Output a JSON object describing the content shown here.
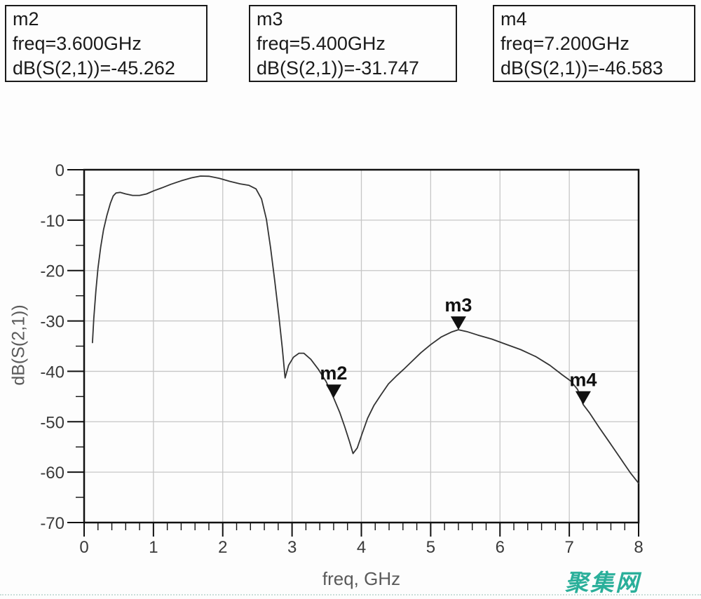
{
  "marker_boxes": [
    {
      "id": "m2",
      "freq": "freq=3.600GHz",
      "value": "dB(S(2,1))=-45.262"
    },
    {
      "id": "m3",
      "freq": "freq=5.400GHz",
      "value": "dB(S(2,1))=-31.747"
    },
    {
      "id": "m4",
      "freq": "freq=7.200GHz",
      "value": "dB(S(2,1))=-46.583"
    }
  ],
  "chart_data": {
    "type": "line",
    "title": "",
    "xlabel": "freq, GHz",
    "ylabel": "dB(S(2,1))",
    "xlim": [
      0,
      8
    ],
    "ylim": [
      -70,
      0
    ],
    "x_major_step": 1,
    "x_minor_step": 0.2,
    "y_major_step": 10,
    "y_minor_step": 5,
    "grid": true,
    "legend_position": "none",
    "x_tick_labels": [
      "0",
      "1",
      "2",
      "3",
      "4",
      "5",
      "6",
      "7",
      "8"
    ],
    "y_tick_labels": [
      "0",
      "-10",
      "-20",
      "-30",
      "-40",
      "-50",
      "-60",
      "-70"
    ],
    "series": [
      {
        "name": "dB(S(2,1))",
        "points": [
          [
            0.12,
            -34.3
          ],
          [
            0.14,
            -29.5
          ],
          [
            0.17,
            -24.0
          ],
          [
            0.2,
            -19.5
          ],
          [
            0.24,
            -15.3
          ],
          [
            0.28,
            -11.9
          ],
          [
            0.33,
            -9.0
          ],
          [
            0.38,
            -6.6
          ],
          [
            0.42,
            -5.2
          ],
          [
            0.46,
            -4.6
          ],
          [
            0.52,
            -4.5
          ],
          [
            0.6,
            -4.8
          ],
          [
            0.7,
            -5.1
          ],
          [
            0.8,
            -5.1
          ],
          [
            0.9,
            -4.8
          ],
          [
            1.0,
            -4.2
          ],
          [
            1.12,
            -3.6
          ],
          [
            1.25,
            -2.9
          ],
          [
            1.4,
            -2.2
          ],
          [
            1.55,
            -1.6
          ],
          [
            1.68,
            -1.25
          ],
          [
            1.8,
            -1.3
          ],
          [
            1.95,
            -1.7
          ],
          [
            2.1,
            -2.3
          ],
          [
            2.25,
            -2.8
          ],
          [
            2.38,
            -3.1
          ],
          [
            2.48,
            -3.8
          ],
          [
            2.56,
            -5.8
          ],
          [
            2.63,
            -9.8
          ],
          [
            2.69,
            -15.5
          ],
          [
            2.75,
            -22.0
          ],
          [
            2.81,
            -29.0
          ],
          [
            2.86,
            -35.5
          ],
          [
            2.9,
            -41.3
          ],
          [
            2.95,
            -38.8
          ],
          [
            3.02,
            -37.2
          ],
          [
            3.1,
            -36.4
          ],
          [
            3.17,
            -36.4
          ],
          [
            3.27,
            -37.6
          ],
          [
            3.38,
            -39.6
          ],
          [
            3.49,
            -42.0
          ],
          [
            3.6,
            -45.26
          ],
          [
            3.69,
            -48.2
          ],
          [
            3.76,
            -51.0
          ],
          [
            3.83,
            -54.0
          ],
          [
            3.88,
            -56.3
          ],
          [
            3.94,
            -55.2
          ],
          [
            4.01,
            -52.4
          ],
          [
            4.09,
            -49.3
          ],
          [
            4.18,
            -46.8
          ],
          [
            4.28,
            -44.7
          ],
          [
            4.39,
            -42.5
          ],
          [
            4.5,
            -41.0
          ],
          [
            4.61,
            -39.6
          ],
          [
            4.73,
            -38.0
          ],
          [
            4.86,
            -36.3
          ],
          [
            5.0,
            -34.7
          ],
          [
            5.15,
            -33.2
          ],
          [
            5.3,
            -32.2
          ],
          [
            5.4,
            -31.75
          ],
          [
            5.52,
            -32.1
          ],
          [
            5.68,
            -32.8
          ],
          [
            5.88,
            -33.6
          ],
          [
            6.08,
            -34.6
          ],
          [
            6.3,
            -35.7
          ],
          [
            6.52,
            -37.1
          ],
          [
            6.72,
            -38.8
          ],
          [
            6.9,
            -40.7
          ],
          [
            7.02,
            -41.9
          ],
          [
            7.12,
            -43.6
          ],
          [
            7.2,
            -46.58
          ],
          [
            7.29,
            -48.2
          ],
          [
            7.43,
            -51.1
          ],
          [
            7.58,
            -54.1
          ],
          [
            7.73,
            -57.1
          ],
          [
            7.88,
            -60.1
          ],
          [
            8.0,
            -62.2
          ]
        ]
      }
    ],
    "markers": [
      {
        "id": "m2",
        "freq_ghz": 3.6,
        "db": -45.262
      },
      {
        "id": "m3",
        "freq_ghz": 5.4,
        "db": -31.747
      },
      {
        "id": "m4",
        "freq_ghz": 7.2,
        "db": -46.583
      }
    ]
  },
  "watermark": {
    "text": "聚集网",
    "color": "#2aaf9a"
  },
  "colors": {
    "curve": "#333333",
    "grid": "#c6c6c6",
    "frame": "#111111",
    "tick": "#111111",
    "tick_label": "#3a3a3a",
    "axis_label": "#5a5a5a",
    "marker": "#111111",
    "box_border": "#1a1a1a",
    "divider": "#c9ded9"
  }
}
